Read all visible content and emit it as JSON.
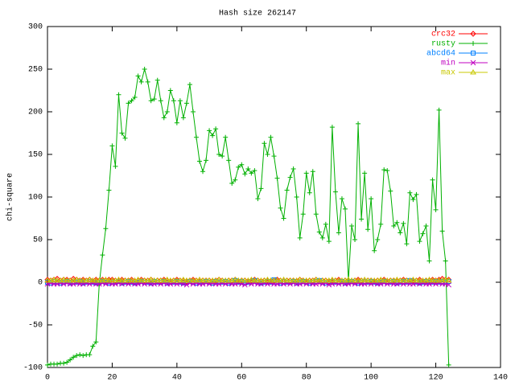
{
  "chart_data": {
    "type": "line",
    "title": "Hash size 262147",
    "y_label": "chi-square",
    "xlim": [
      0,
      140
    ],
    "xticks": [
      0,
      20,
      40,
      60,
      80,
      100,
      120,
      140
    ],
    "ylim": [
      -100,
      300
    ],
    "yticks": [
      -100,
      -50,
      0,
      50,
      100,
      150,
      200,
      250,
      300
    ],
    "grid": false,
    "legend": "top-right",
    "x": [
      0,
      1,
      2,
      3,
      4,
      5,
      6,
      7,
      8,
      9,
      10,
      11,
      12,
      13,
      14,
      15,
      16,
      17,
      18,
      19,
      20,
      21,
      22,
      23,
      24,
      25,
      26,
      27,
      28,
      29,
      30,
      31,
      32,
      33,
      34,
      35,
      36,
      37,
      38,
      39,
      40,
      41,
      42,
      43,
      44,
      45,
      46,
      47,
      48,
      49,
      50,
      51,
      52,
      53,
      54,
      55,
      56,
      57,
      58,
      59,
      60,
      61,
      62,
      63,
      64,
      65,
      66,
      67,
      68,
      69,
      70,
      71,
      72,
      73,
      74,
      75,
      76,
      77,
      78,
      79,
      80,
      81,
      82,
      83,
      84,
      85,
      86,
      87,
      88,
      89,
      90,
      91,
      92,
      93,
      94,
      95,
      96,
      97,
      98,
      99,
      100,
      101,
      102,
      103,
      104,
      105,
      106,
      107,
      108,
      109,
      110,
      111,
      112,
      113,
      114,
      115,
      116,
      117,
      118,
      119,
      120,
      121,
      122,
      123,
      124
    ],
    "series": [
      {
        "name": "crc32",
        "color": "#ff0000",
        "marker": "diamond",
        "values": [
          3,
          2,
          3,
          4,
          2,
          3,
          3,
          2,
          4,
          3,
          2,
          3,
          2,
          3,
          1,
          3,
          2,
          3,
          2,
          3,
          3,
          2,
          2,
          3,
          2,
          2,
          3,
          1,
          2,
          3,
          2,
          2,
          3,
          1,
          2,
          2,
          3,
          2,
          1,
          2,
          3,
          2,
          2,
          1,
          2,
          3,
          2,
          1,
          2,
          2,
          2,
          1,
          2,
          3,
          2,
          1,
          2,
          2,
          3,
          1,
          2,
          2,
          1,
          2,
          3,
          2,
          1,
          2,
          2,
          1,
          2,
          3,
          2,
          1,
          2,
          2,
          2,
          1,
          3,
          2,
          1,
          2,
          2,
          3,
          1,
          2,
          2,
          1,
          2,
          2,
          3,
          1,
          2,
          2,
          1,
          2,
          3,
          2,
          1,
          2,
          2,
          1,
          2,
          2,
          3,
          1,
          2,
          2,
          1,
          2,
          3,
          2,
          1,
          2,
          2,
          3,
          1,
          2,
          2,
          3,
          2,
          3,
          4,
          3,
          3
        ]
      },
      {
        "name": "rusty",
        "color": "#00b000",
        "marker": "plus",
        "values": [
          -97,
          -96,
          -96,
          -96,
          -95,
          -95,
          -94,
          -91,
          -88,
          -86,
          -85,
          -86,
          -85,
          -85,
          -75,
          -70,
          -2,
          32,
          63,
          108,
          160,
          136,
          220,
          175,
          169,
          210,
          213,
          217,
          242,
          235,
          250,
          235,
          213,
          215,
          237,
          213,
          193,
          200,
          225,
          213,
          187,
          213,
          193,
          210,
          232,
          200,
          170,
          142,
          130,
          143,
          178,
          172,
          180,
          150,
          148,
          170,
          143,
          116,
          120,
          135,
          138,
          127,
          133,
          128,
          131,
          98,
          110,
          163,
          150,
          170,
          148,
          122,
          87,
          75,
          108,
          123,
          133,
          100,
          52,
          80,
          128,
          105,
          130,
          80,
          59,
          52,
          68,
          48,
          182,
          106,
          58,
          98,
          86,
          2,
          66,
          50,
          186,
          74,
          128,
          62,
          98,
          37,
          50,
          68,
          132,
          131,
          107,
          66,
          70,
          58,
          69,
          45,
          105,
          97,
          103,
          48,
          57,
          66,
          25,
          120,
          85,
          202,
          60,
          25,
          -97
        ]
      },
      {
        "name": "abcd64",
        "color": "#0080ff",
        "marker": "square",
        "values": [
          0,
          -1,
          1,
          0,
          -1,
          0,
          1,
          -1,
          0,
          0,
          1,
          -1,
          0,
          1,
          0,
          -1,
          0,
          1,
          0,
          -1,
          0,
          0,
          1,
          -1,
          0,
          1,
          0,
          -1,
          0,
          1,
          0,
          0,
          -1,
          1,
          0,
          0,
          1,
          -1,
          0,
          0,
          1,
          0,
          -1,
          0,
          1,
          0,
          -1,
          0,
          0,
          1,
          0,
          -1,
          1,
          0,
          0,
          1,
          -1,
          0,
          2,
          0,
          1,
          -1,
          0,
          1,
          2,
          0,
          -1,
          0,
          1,
          0,
          3,
          0,
          -1,
          1,
          0,
          0,
          1,
          -1,
          0,
          1,
          0,
          -1,
          0,
          1,
          2,
          0,
          -1,
          0,
          1,
          0,
          0,
          1,
          -1,
          0,
          1,
          0,
          -1,
          0,
          1,
          0,
          1,
          0,
          -1,
          0,
          1,
          0,
          0,
          1,
          -1,
          0,
          1,
          0,
          2,
          1,
          0,
          -1,
          0,
          1,
          0,
          0,
          1,
          0,
          1,
          0,
          1
        ]
      },
      {
        "name": "min",
        "color": "#c000c0",
        "marker": "cross",
        "values": [
          -2,
          -1,
          -2,
          -2,
          -1,
          -2,
          -1,
          -2,
          -2,
          -1,
          -2,
          -2,
          -1,
          -2,
          -1,
          -2,
          -2,
          -1,
          -2,
          -1,
          -2,
          -2,
          -1,
          -2,
          -1,
          -2,
          -1,
          -2,
          -2,
          -1,
          -2,
          -1,
          -2,
          -2,
          -1,
          -2,
          -1,
          -2,
          -2,
          -1,
          -2,
          -1,
          -2,
          -3,
          -1,
          -2,
          -1,
          -2,
          -2,
          -1,
          -2,
          -1,
          -2,
          -2,
          -1,
          -2,
          -1,
          -2,
          -2,
          -1,
          -2,
          -3,
          -1,
          -2,
          -1,
          -2,
          -2,
          -1,
          -2,
          -1,
          -2,
          -2,
          -1,
          -2,
          -1,
          -2,
          -1,
          -2,
          -2,
          -1,
          -2,
          -1,
          -2,
          -2,
          -1,
          -2,
          -1,
          -3,
          -2,
          -1,
          -2,
          -1,
          -2,
          -2,
          -1,
          -2,
          -1,
          -2,
          -2,
          -1,
          -2,
          -1,
          -2,
          -2,
          -1,
          -2,
          -1,
          -2,
          -2,
          -1,
          -2,
          -1,
          -2,
          -2,
          -1,
          -2,
          -1,
          -2,
          -2,
          -1,
          -2,
          -1,
          -2,
          -2,
          -3
        ]
      },
      {
        "name": "max",
        "color": "#c8c800",
        "marker": "triangle",
        "values": [
          2,
          2,
          3,
          2,
          2,
          3,
          2,
          2,
          2,
          3,
          2,
          2,
          2,
          3,
          2,
          2,
          2,
          2,
          3,
          2,
          2,
          2,
          3,
          2,
          2,
          2,
          2,
          2,
          3,
          2,
          2,
          2,
          3,
          2,
          2,
          2,
          2,
          3,
          2,
          2,
          2,
          2,
          3,
          2,
          2,
          2,
          2,
          3,
          2,
          2,
          2,
          2,
          2,
          3,
          2,
          2,
          2,
          2,
          3,
          2,
          2,
          2,
          2,
          3,
          2,
          2,
          2,
          2,
          3,
          2,
          2,
          2,
          2,
          3,
          2,
          2,
          2,
          2,
          3,
          2,
          2,
          2,
          2,
          3,
          2,
          2,
          2,
          2,
          3,
          2,
          2,
          2,
          2,
          3,
          2,
          2,
          2,
          2,
          3,
          2,
          2,
          2,
          2,
          3,
          2,
          2,
          2,
          2,
          3,
          2,
          2,
          2,
          2,
          3,
          2,
          2,
          2,
          2,
          3,
          2,
          2,
          2,
          2,
          3,
          2
        ]
      }
    ]
  }
}
